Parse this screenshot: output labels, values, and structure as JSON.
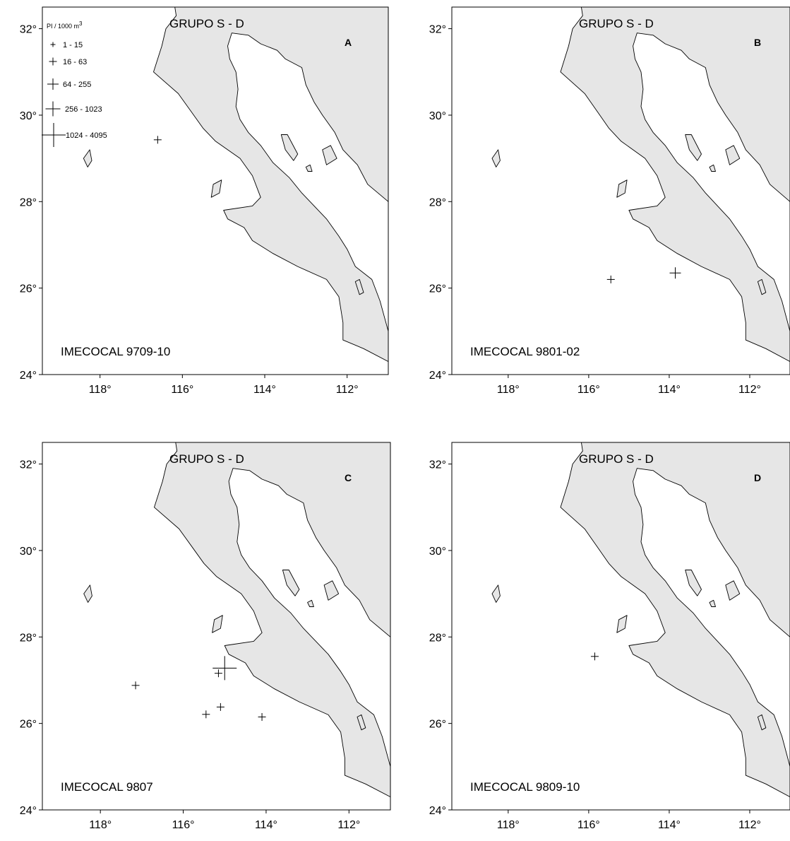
{
  "figure": {
    "colors": {
      "land": "#e6e6e6",
      "water": "#ffffff",
      "coast": "#000000",
      "marker": "#000000"
    },
    "map_extent": {
      "lon_min": -119.4,
      "lon_max": -111.0,
      "lat_min": 24.0,
      "lat_max": 32.5
    },
    "lat_ticks": [
      {
        "value": 32,
        "label": "32°"
      },
      {
        "value": 30,
        "label": "30°"
      },
      {
        "value": 28,
        "label": "28°"
      },
      {
        "value": 26,
        "label": "26°"
      },
      {
        "value": 24,
        "label": "24°"
      }
    ],
    "lon_ticks": [
      {
        "value": -118,
        "label": "118°"
      },
      {
        "value": -116,
        "label": "116°"
      },
      {
        "value": -114,
        "label": "114°"
      },
      {
        "value": -112,
        "label": "112°"
      }
    ],
    "legend": {
      "title": "PI / 1000 m",
      "title_superscript": "3",
      "classes": [
        {
          "label": "1 - 15",
          "size_class": 1
        },
        {
          "label": "16 - 63",
          "size_class": 2
        },
        {
          "label": "64 - 255",
          "size_class": 3
        },
        {
          "label": "256 - 1023",
          "size_class": 4
        },
        {
          "label": "1024 - 4095",
          "size_class": 5
        }
      ]
    }
  },
  "panels": [
    {
      "letter": "A",
      "group_title": "GRUPO  S - D",
      "cruise": "IMECOCAL 9709-10",
      "show_legend": true,
      "stations": [
        {
          "lon": -116.6,
          "lat": 29.43,
          "size_class": 2
        }
      ]
    },
    {
      "letter": "B",
      "group_title": "GRUPO  S - D",
      "cruise": "IMECOCAL 9801-02",
      "show_legend": false,
      "stations": [
        {
          "lon": -115.45,
          "lat": 26.2,
          "size_class": 2
        },
        {
          "lon": -113.85,
          "lat": 26.35,
          "size_class": 3
        }
      ]
    },
    {
      "letter": "C",
      "group_title": "GRUPO  S - D",
      "cruise": "IMECOCAL 9807",
      "show_legend": false,
      "stations": [
        {
          "lon": -117.15,
          "lat": 26.88,
          "size_class": 2
        },
        {
          "lon": -115.15,
          "lat": 27.16,
          "size_class": 2
        },
        {
          "lon": -115.0,
          "lat": 27.28,
          "size_class": 5
        },
        {
          "lon": -115.45,
          "lat": 26.21,
          "size_class": 2
        },
        {
          "lon": -115.1,
          "lat": 26.38,
          "size_class": 2
        },
        {
          "lon": -114.1,
          "lat": 26.15,
          "size_class": 2
        }
      ]
    },
    {
      "letter": "D",
      "group_title": "GRUPO  S - D",
      "cruise": "IMECOCAL 9809-10",
      "show_legend": false,
      "stations": [
        {
          "lon": -115.85,
          "lat": 27.55,
          "size_class": 2
        }
      ]
    }
  ]
}
